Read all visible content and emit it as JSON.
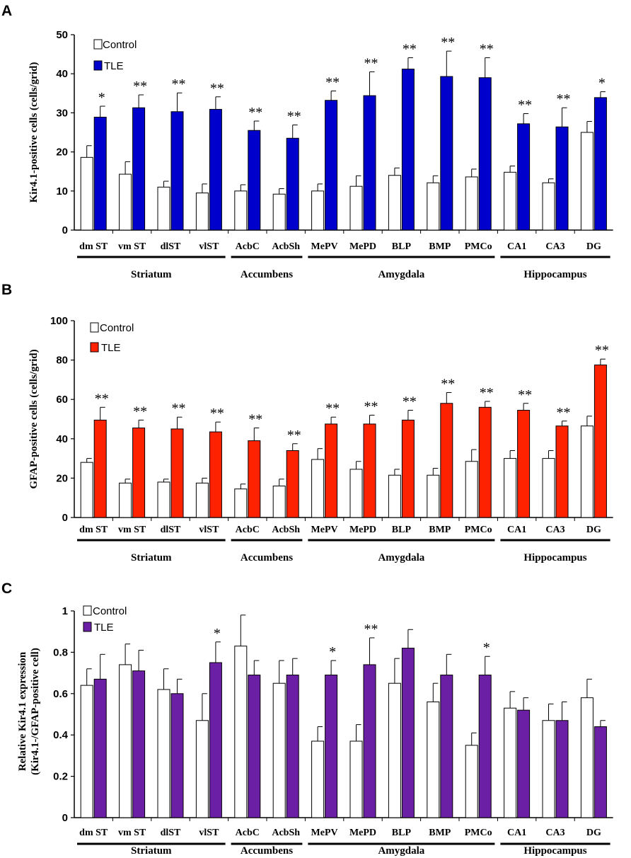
{
  "figure": {
    "region_groups": [
      {
        "label": "Striatum",
        "from": 0,
        "to": 3
      },
      {
        "label": "Accumbens",
        "from": 4,
        "to": 5
      },
      {
        "label": "Amygdala",
        "from": 6,
        "to": 10
      },
      {
        "label": "Hippocampus",
        "from": 11,
        "to": 13
      }
    ],
    "legend_control": "Control",
    "legend_tle": "TLE"
  },
  "chart_data": [
    {
      "panel": "A",
      "type": "bar",
      "ylabel": "Kir4.1-positive cells (cells/grid)",
      "ylim": [
        0,
        50
      ],
      "yticks": [
        "0",
        "10",
        "20",
        "30",
        "40",
        "50"
      ],
      "tle_color": "#0000cc",
      "categories": [
        "dm ST",
        "vm ST",
        "dlST",
        "vlST",
        "AcbC",
        "AcbSh",
        "MePV",
        "MePD",
        "BLP",
        "BMP",
        "PMCo",
        "CA1",
        "CA3",
        "DG"
      ],
      "series": [
        {
          "name": "Control",
          "values": [
            18.6,
            14.3,
            11.0,
            9.5,
            10.0,
            9.2,
            10.0,
            11.2,
            14.0,
            12.1,
            13.6,
            14.8,
            12.1,
            25.0
          ],
          "errors": [
            3.0,
            3.2,
            1.5,
            2.3,
            1.6,
            1.4,
            1.8,
            2.7,
            1.9,
            1.8,
            2.0,
            1.6,
            1.0,
            2.8
          ]
        },
        {
          "name": "TLE",
          "values": [
            28.9,
            31.3,
            30.3,
            30.9,
            25.5,
            23.5,
            33.2,
            34.4,
            41.2,
            39.3,
            39.0,
            27.2,
            26.4,
            33.9
          ],
          "errors": [
            2.8,
            3.3,
            4.8,
            3.2,
            2.4,
            3.4,
            2.4,
            6.1,
            2.9,
            6.5,
            5.1,
            2.6,
            4.9,
            1.5
          ]
        }
      ],
      "significance": [
        "*",
        "**",
        "**",
        "**",
        "**",
        "**",
        "**",
        "**",
        "**",
        "**",
        "**",
        "**",
        "**",
        "*"
      ]
    },
    {
      "panel": "B",
      "type": "bar",
      "ylabel": "GFAP-positive cells (cells/grid)",
      "ylim": [
        0,
        100
      ],
      "yticks": [
        "0",
        "20",
        "40",
        "60",
        "80",
        "100"
      ],
      "tle_color": "#ff2200",
      "categories": [
        "dm ST",
        "vm ST",
        "dlST",
        "vlST",
        "AcbC",
        "AcbSh",
        "MePV",
        "MePD",
        "BLP",
        "BMP",
        "PMCo",
        "CA1",
        "CA3",
        "DG"
      ],
      "series": [
        {
          "name": "Control",
          "values": [
            28.0,
            17.5,
            18.0,
            17.5,
            14.5,
            16.0,
            29.5,
            24.5,
            21.5,
            21.5,
            28.5,
            30.0,
            30.0,
            46.5
          ],
          "errors": [
            2.0,
            2.0,
            1.5,
            2.5,
            2.5,
            3.5,
            5.5,
            4.0,
            3.0,
            3.5,
            6.0,
            4.0,
            4.0,
            5.0
          ]
        },
        {
          "name": "TLE",
          "values": [
            49.5,
            45.5,
            45.0,
            43.5,
            39.0,
            34.0,
            47.5,
            47.5,
            49.5,
            58.0,
            56.0,
            54.5,
            46.5,
            77.5
          ],
          "errors": [
            6.5,
            4.0,
            6.0,
            5.0,
            6.5,
            3.5,
            3.5,
            4.5,
            5.0,
            5.5,
            3.0,
            3.5,
            2.5,
            3.0
          ]
        }
      ],
      "significance": [
        "**",
        "**",
        "**",
        "**",
        "**",
        "**",
        "**",
        "**",
        "**",
        "**",
        "**",
        "**",
        "**",
        "**"
      ]
    },
    {
      "panel": "C",
      "type": "bar",
      "ylabel": "Relative Kir4.1 expression",
      "ylabel2": "(Kir4.1-/GFAP-positive cell)",
      "ylim": [
        0,
        1
      ],
      "yticks": [
        "0",
        "0.2",
        "0.4",
        "0.6",
        "0.8",
        "1"
      ],
      "tle_color": "#6a1fa5",
      "categories": [
        "dm ST",
        "vm ST",
        "dlST",
        "vlST",
        "AcbC",
        "AcbSh",
        "MePV",
        "MePD",
        "BLP",
        "BMP",
        "PMCo",
        "CA1",
        "CA3",
        "DG"
      ],
      "series": [
        {
          "name": "Control",
          "values": [
            0.64,
            0.74,
            0.62,
            0.47,
            0.83,
            0.65,
            0.37,
            0.37,
            0.65,
            0.56,
            0.35,
            0.53,
            0.47,
            0.58
          ],
          "errors": [
            0.08,
            0.1,
            0.1,
            0.13,
            0.15,
            0.11,
            0.07,
            0.08,
            0.12,
            0.09,
            0.06,
            0.08,
            0.08,
            0.09
          ]
        },
        {
          "name": "TLE",
          "values": [
            0.67,
            0.71,
            0.6,
            0.75,
            0.69,
            0.69,
            0.69,
            0.74,
            0.82,
            0.69,
            0.69,
            0.52,
            0.47,
            0.44
          ],
          "errors": [
            0.12,
            0.1,
            0.07,
            0.1,
            0.07,
            0.08,
            0.07,
            0.13,
            0.09,
            0.1,
            0.09,
            0.06,
            0.09,
            0.03
          ]
        }
      ],
      "significance": [
        "",
        "",
        "",
        "*",
        "",
        "",
        "*",
        "**",
        "",
        "",
        "*",
        "",
        "",
        ""
      ]
    }
  ]
}
